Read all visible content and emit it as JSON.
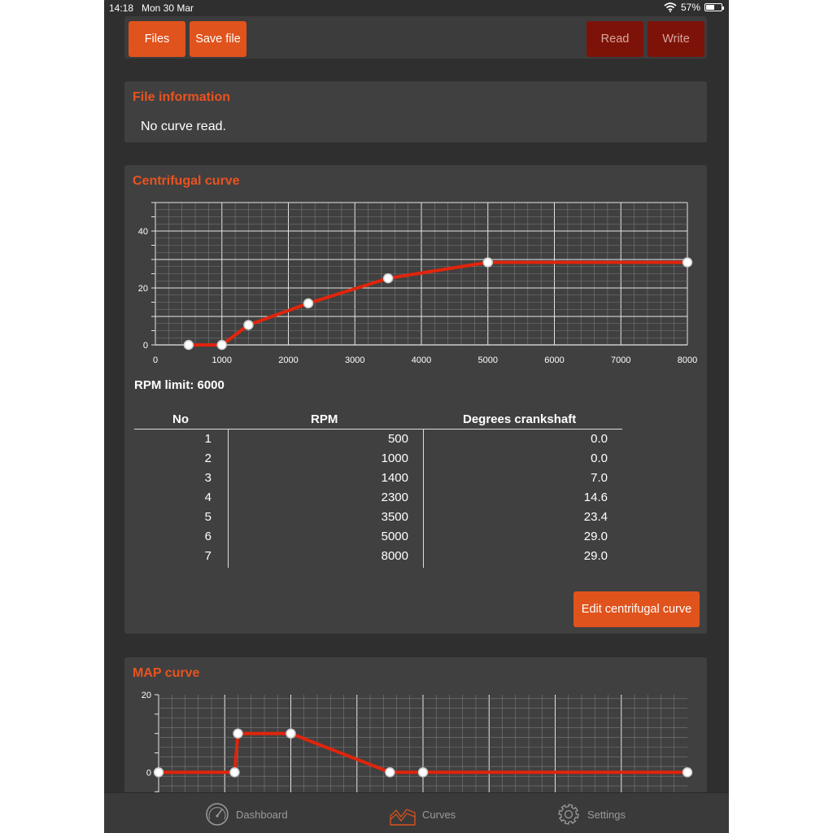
{
  "status": {
    "time": "14:18",
    "date": "Mon 30 Mar",
    "battery": "57%",
    "battery_level": 0.57
  },
  "toolbar": {
    "files": "Files",
    "save_file": "Save file",
    "read": "Read",
    "write": "Write"
  },
  "file_info": {
    "title": "File information",
    "text": "No curve read."
  },
  "centrifugal": {
    "title": "Centrifugal curve",
    "rpm_limit": "RPM limit: 6000",
    "edit_button": "Edit centrifugal curve",
    "table": {
      "headers": [
        "No",
        "RPM",
        "Degrees crankshaft"
      ],
      "rows": [
        [
          "1",
          "500",
          "0.0"
        ],
        [
          "2",
          "1000",
          "0.0"
        ],
        [
          "3",
          "1400",
          "7.0"
        ],
        [
          "4",
          "2300",
          "14.6"
        ],
        [
          "5",
          "3500",
          "23.4"
        ],
        [
          "6",
          "5000",
          "29.0"
        ],
        [
          "7",
          "8000",
          "29.0"
        ]
      ]
    }
  },
  "map": {
    "title": "MAP curve"
  },
  "tabs": {
    "dashboard": "Dashboard",
    "curves": "Curves",
    "settings": "Settings"
  },
  "colors": {
    "accent": "#e85320",
    "curve": "#e0250c",
    "active_tab": "#e0531c"
  },
  "chart_data": [
    {
      "type": "line",
      "x": [
        500,
        1000,
        1400,
        2300,
        3500,
        5000,
        8000
      ],
      "y": [
        0.0,
        0.0,
        7.0,
        14.6,
        23.4,
        29.0,
        29.0
      ],
      "xlim": [
        0,
        8000
      ],
      "ylim": [
        0,
        50
      ],
      "xticks": [
        "0",
        "1000",
        "2000",
        "3000",
        "4000",
        "5000",
        "6000",
        "7000",
        "8000"
      ],
      "yticks": [
        "0",
        "20",
        "40"
      ],
      "grid": true
    },
    {
      "type": "line",
      "x": [
        0,
        2.3,
        2.4,
        4,
        7,
        8,
        16
      ],
      "y": [
        0,
        0,
        10,
        10,
        0,
        0,
        0
      ],
      "xlim": [
        0,
        16
      ],
      "ylim": [
        -6,
        20
      ],
      "yticks": [
        "0",
        "20"
      ],
      "grid": true
    }
  ]
}
